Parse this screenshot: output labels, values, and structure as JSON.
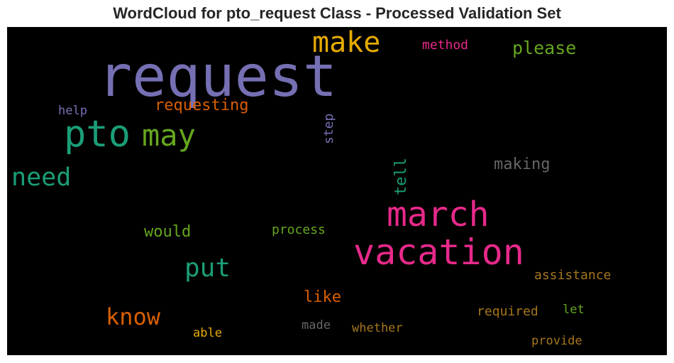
{
  "title": "WordCloud for pto_request Class - Processed Validation Set",
  "words": [
    {
      "text": "request",
      "color": "#7570b3"
    },
    {
      "text": "make",
      "color": "#e6ab02"
    },
    {
      "text": "method",
      "color": "#e7298a"
    },
    {
      "text": "please",
      "color": "#66a61e"
    },
    {
      "text": "help",
      "color": "#7570b3"
    },
    {
      "text": "requesting",
      "color": "#d95f02"
    },
    {
      "text": "pto",
      "color": "#1b9e77"
    },
    {
      "text": "may",
      "color": "#66a61e"
    },
    {
      "text": "step",
      "color": "#7570b3"
    },
    {
      "text": "need",
      "color": "#1b9e77"
    },
    {
      "text": "tell",
      "color": "#1b9e77"
    },
    {
      "text": "making",
      "color": "#666666"
    },
    {
      "text": "march",
      "color": "#e7298a"
    },
    {
      "text": "would",
      "color": "#66a61e"
    },
    {
      "text": "process",
      "color": "#66a61e"
    },
    {
      "text": "vacation",
      "color": "#e7298a"
    },
    {
      "text": "put",
      "color": "#1b9e77"
    },
    {
      "text": "assistance",
      "color": "#a6761d"
    },
    {
      "text": "like",
      "color": "#d95f02"
    },
    {
      "text": "know",
      "color": "#d95f02"
    },
    {
      "text": "required",
      "color": "#a6761d"
    },
    {
      "text": "let",
      "color": "#66a61e"
    },
    {
      "text": "able",
      "color": "#e6ab02"
    },
    {
      "text": "made",
      "color": "#666666"
    },
    {
      "text": "whether",
      "color": "#a6761d"
    },
    {
      "text": "provide",
      "color": "#a6761d"
    }
  ]
}
